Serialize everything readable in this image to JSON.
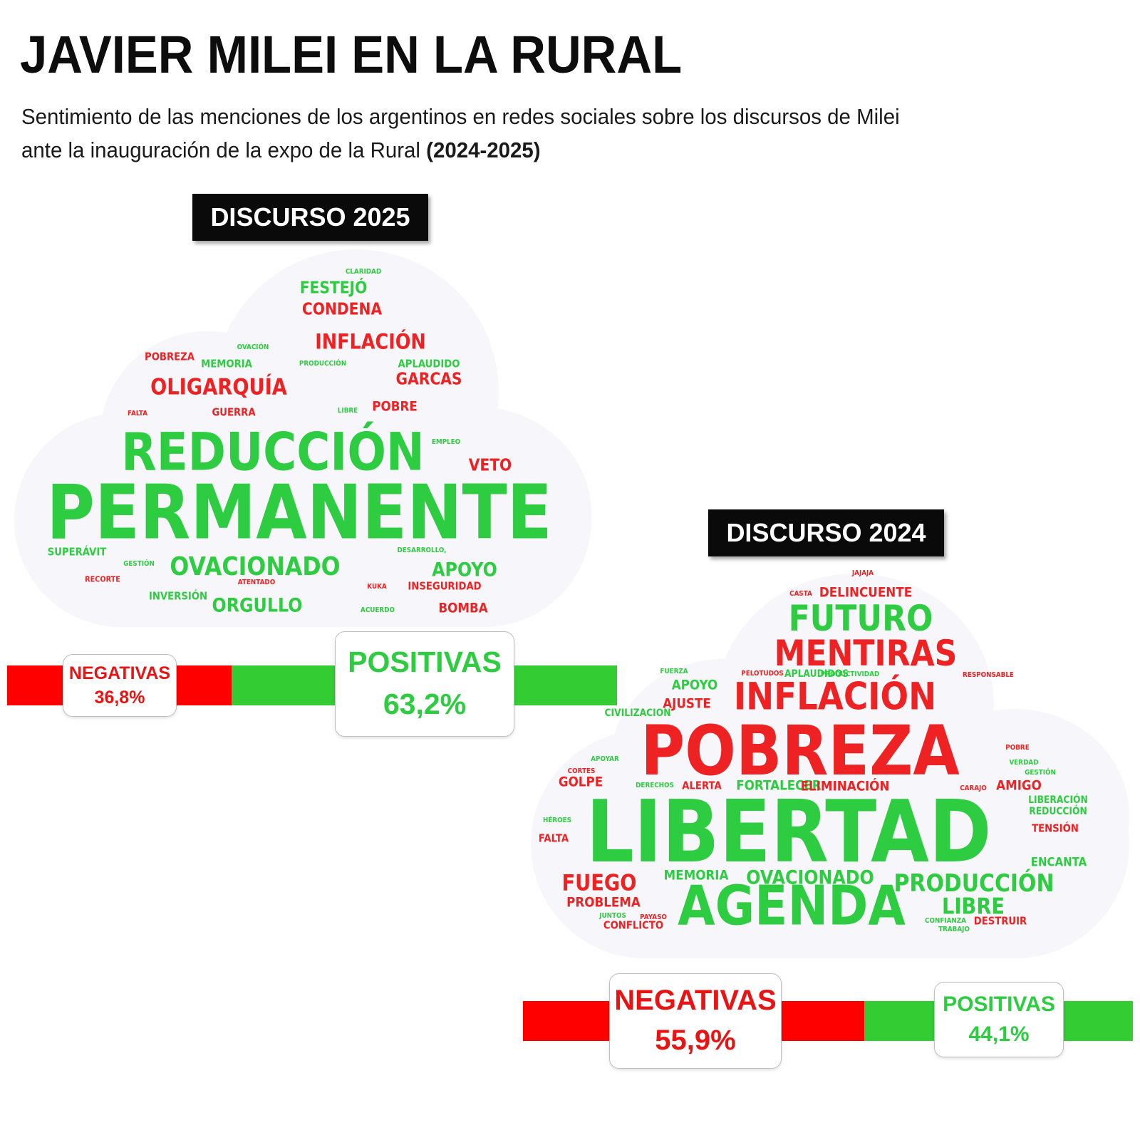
{
  "title": "JAVIER MILEI EN LA RURAL",
  "subtitle": {
    "line1": "Sentimiento de las menciones de los argentinos en redes sociales sobre los discursos de Milei",
    "line2": "ante la inauguración de la expo de la Rural",
    "years": "(2024-2025)"
  },
  "colors": {
    "positive": "#33cc33",
    "negative": "#ff0000",
    "label_bg": "#0a0a0a"
  },
  "discurso_2025": {
    "label": "DISCURSO 2025",
    "negativas_label": "NEGATIVAS",
    "negativas_value": "36,8%",
    "positivas_label": "POSITIVAS",
    "positivas_value": "63,2%",
    "negative_fraction": 0.368,
    "words": [
      {
        "text": "CLARIDAD",
        "sentiment": "positive"
      },
      {
        "text": "FESTEJÓ",
        "sentiment": "positive"
      },
      {
        "text": "CONDENA",
        "sentiment": "negative"
      },
      {
        "text": "INFLACIÓN",
        "sentiment": "negative"
      },
      {
        "text": "OVACIÓN",
        "sentiment": "positive"
      },
      {
        "text": "POBREZA",
        "sentiment": "negative"
      },
      {
        "text": "MEMORIA",
        "sentiment": "positive"
      },
      {
        "text": "PRODUCCIÓN",
        "sentiment": "positive"
      },
      {
        "text": "APLAUDIDO",
        "sentiment": "positive"
      },
      {
        "text": "GARCAS",
        "sentiment": "negative"
      },
      {
        "text": "OLIGARQUÍA",
        "sentiment": "negative"
      },
      {
        "text": "FALTA",
        "sentiment": "negative"
      },
      {
        "text": "GUERRA",
        "sentiment": "negative"
      },
      {
        "text": "LIBRE",
        "sentiment": "positive"
      },
      {
        "text": "POBRE",
        "sentiment": "negative"
      },
      {
        "text": "REDUCCIÓN",
        "sentiment": "positive"
      },
      {
        "text": "EMPLEO",
        "sentiment": "positive"
      },
      {
        "text": "VETO",
        "sentiment": "negative"
      },
      {
        "text": "PERMANENTE",
        "sentiment": "positive"
      },
      {
        "text": "SUPERÁVIT",
        "sentiment": "positive"
      },
      {
        "text": "GESTIÓN",
        "sentiment": "positive"
      },
      {
        "text": "OVACIONADO",
        "sentiment": "positive"
      },
      {
        "text": "DESARROLLO,",
        "sentiment": "positive"
      },
      {
        "text": "APOYO",
        "sentiment": "positive"
      },
      {
        "text": "RECORTE",
        "sentiment": "negative"
      },
      {
        "text": "ATENTADO",
        "sentiment": "negative"
      },
      {
        "text": "KUKA",
        "sentiment": "negative"
      },
      {
        "text": "INSEGURIDAD",
        "sentiment": "negative"
      },
      {
        "text": "INVERSIÓN",
        "sentiment": "positive"
      },
      {
        "text": "ORGULLO",
        "sentiment": "positive"
      },
      {
        "text": "ACUERDO",
        "sentiment": "positive"
      },
      {
        "text": "BOMBA",
        "sentiment": "negative"
      }
    ]
  },
  "discurso_2024": {
    "label": "DISCURSO 2024",
    "negativas_label": "NEGATIVAS",
    "negativas_value": "55,9%",
    "positivas_label": "POSITIVAS",
    "positivas_value": "44,1%",
    "negative_fraction": 0.559,
    "words": [
      {
        "text": "JAJAJA",
        "sentiment": "negative"
      },
      {
        "text": "CASTA",
        "sentiment": "negative"
      },
      {
        "text": "DELINCUENTE",
        "sentiment": "negative"
      },
      {
        "text": "FUTURO",
        "sentiment": "positive"
      },
      {
        "text": "MENTIRAS",
        "sentiment": "negative"
      },
      {
        "text": "FUERZA",
        "sentiment": "positive"
      },
      {
        "text": "PELOTUDOS",
        "sentiment": "negative"
      },
      {
        "text": "APLAUDIDOS",
        "sentiment": "positive"
      },
      {
        "text": "PRODUCTIVIDAD",
        "sentiment": "positive"
      },
      {
        "text": "RESPONSABLE",
        "sentiment": "negative"
      },
      {
        "text": "APOYO",
        "sentiment": "positive"
      },
      {
        "text": "INFLACIÓN",
        "sentiment": "negative"
      },
      {
        "text": "AJUSTE",
        "sentiment": "negative"
      },
      {
        "text": "CIVILIZACION",
        "sentiment": "positive"
      },
      {
        "text": "POBREZA",
        "sentiment": "negative"
      },
      {
        "text": "POBRE",
        "sentiment": "negative"
      },
      {
        "text": "APOYAR",
        "sentiment": "positive"
      },
      {
        "text": "VERDAD",
        "sentiment": "positive"
      },
      {
        "text": "CORTES",
        "sentiment": "negative"
      },
      {
        "text": "GESTIÓN",
        "sentiment": "positive"
      },
      {
        "text": "GOLPE",
        "sentiment": "negative"
      },
      {
        "text": "DERECHOS",
        "sentiment": "positive"
      },
      {
        "text": "ALERTA",
        "sentiment": "negative"
      },
      {
        "text": "FORTALECER",
        "sentiment": "positive"
      },
      {
        "text": "ELIMINACIÓN",
        "sentiment": "negative"
      },
      {
        "text": "CARAJO",
        "sentiment": "negative"
      },
      {
        "text": "AMIGO",
        "sentiment": "negative"
      },
      {
        "text": "LIBERACIÓN",
        "sentiment": "positive"
      },
      {
        "text": "REDUCCIÓN",
        "sentiment": "positive"
      },
      {
        "text": "HÉROES",
        "sentiment": "positive"
      },
      {
        "text": "LIBERTAD",
        "sentiment": "positive"
      },
      {
        "text": "TENSIÓN",
        "sentiment": "negative"
      },
      {
        "text": "FALTA",
        "sentiment": "negative"
      },
      {
        "text": "ENCANTA",
        "sentiment": "positive"
      },
      {
        "text": "MEMORIA",
        "sentiment": "positive"
      },
      {
        "text": "OVACIONADO",
        "sentiment": "positive"
      },
      {
        "text": "FUEGO",
        "sentiment": "negative"
      },
      {
        "text": "PRODUCCIÓN",
        "sentiment": "positive"
      },
      {
        "text": "PROBLEMA",
        "sentiment": "negative"
      },
      {
        "text": "AGENDA",
        "sentiment": "positive"
      },
      {
        "text": "LIBRE",
        "sentiment": "positive"
      },
      {
        "text": "JUNTOS",
        "sentiment": "positive"
      },
      {
        "text": "PAYASO",
        "sentiment": "negative"
      },
      {
        "text": "CONFIANZA",
        "sentiment": "positive"
      },
      {
        "text": "DESTRUIR",
        "sentiment": "negative"
      },
      {
        "text": "CONFLICTO",
        "sentiment": "negative"
      },
      {
        "text": "TRABAJO",
        "sentiment": "positive"
      }
    ]
  }
}
